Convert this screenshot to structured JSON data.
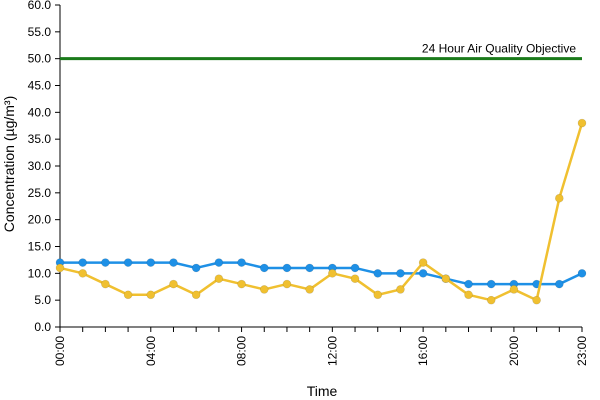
{
  "chart_data": {
    "type": "line",
    "title": "",
    "xlabel": "Time",
    "ylabel": "Concentration (µg/m³)",
    "ylim": [
      0,
      60
    ],
    "yticks": [
      "0.0",
      "5.0",
      "10.0",
      "15.0",
      "20.0",
      "25.0",
      "30.0",
      "35.0",
      "40.0",
      "45.0",
      "50.0",
      "55.0",
      "60.0"
    ],
    "xticks": [
      "00:00",
      "04:00",
      "08:00",
      "12:00",
      "16:00",
      "20:00",
      "23:00"
    ],
    "x": [
      "00:00",
      "01:00",
      "02:00",
      "03:00",
      "04:00",
      "05:00",
      "06:00",
      "07:00",
      "08:00",
      "09:00",
      "10:00",
      "11:00",
      "12:00",
      "13:00",
      "14:00",
      "15:00",
      "16:00",
      "17:00",
      "18:00",
      "19:00",
      "20:00",
      "21:00",
      "22:00",
      "23:00"
    ],
    "grid": false,
    "series": [
      {
        "color": "#1e90e6",
        "values": [
          12,
          12,
          12,
          12,
          12,
          12,
          11,
          12,
          12,
          11,
          11,
          11,
          11,
          11,
          10,
          10,
          10,
          9,
          8,
          8,
          8,
          8,
          8,
          10
        ]
      },
      {
        "color": "#f0c030",
        "values": [
          11,
          10,
          8,
          6,
          6,
          8,
          6,
          9,
          8,
          7,
          8,
          7,
          10,
          9,
          6,
          7,
          12,
          9,
          6,
          5,
          7,
          5,
          24,
          38
        ]
      }
    ],
    "reference_line": {
      "label": "24 Hour Air Quality Objective",
      "value": 50,
      "color": "#1a7a1a"
    }
  }
}
